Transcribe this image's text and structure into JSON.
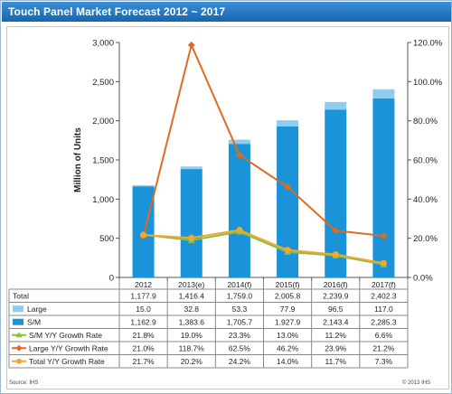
{
  "header": {
    "title": "Touch Panel Market Forecast 2012 ~ 2017"
  },
  "chart_data": {
    "type": "bar",
    "stacked": true,
    "categories": [
      "2012",
      "2013(e)",
      "2014(f)",
      "2015(f)",
      "2016(f)",
      "2017(f)"
    ],
    "ylabel": "Million of Units",
    "ylim": [
      0,
      3000
    ],
    "yticks": [
      "0",
      "500",
      "1,000",
      "1,500",
      "2,000",
      "2,500",
      "3,000"
    ],
    "y2lim": [
      0,
      120
    ],
    "y2ticks": [
      "0.0%",
      "20.0%",
      "40.0%",
      "60.0%",
      "80.0%",
      "100.0%",
      "120.0%"
    ],
    "bar_series": [
      {
        "name": "S/M",
        "values": [
          1162.9,
          1383.6,
          1705.7,
          1927.9,
          2143.4,
          2285.3
        ],
        "color": "#1a93d8"
      },
      {
        "name": "Large",
        "values": [
          15.0,
          32.8,
          53.3,
          77.9,
          96.5,
          117.0
        ],
        "color": "#8ccdf0"
      }
    ],
    "line_series": [
      {
        "name": "S/M Y/Y Growth Rate",
        "values": [
          21.8,
          19.0,
          23.3,
          13.0,
          11.2,
          6.6
        ],
        "color": "#8dbf3b",
        "marker": "triangle"
      },
      {
        "name": "Large Y/Y Growth Rate",
        "values": [
          21.0,
          118.7,
          62.5,
          46.2,
          23.9,
          21.2
        ],
        "color": "#e06a20",
        "marker": "diamond"
      },
      {
        "name": "Total Y/Y Growth Rate",
        "values": [
          21.7,
          20.2,
          24.2,
          14.0,
          11.7,
          7.3
        ],
        "color": "#f0a830",
        "marker": "circle"
      }
    ],
    "table": {
      "rows": [
        {
          "label": "Total",
          "key": "total",
          "values": [
            "1,177.9",
            "1,416.4",
            "1,759.0",
            "2,005.8",
            "2,239.9",
            "2,402.3"
          ]
        },
        {
          "label": "Large",
          "key": "large",
          "values": [
            "15.0",
            "32.8",
            "53.3",
            "77.9",
            "96.5",
            "117.0"
          ]
        },
        {
          "label": "S/M",
          "key": "sm",
          "values": [
            "1,162.9",
            "1,383.6",
            "1,705.7",
            "1,927.9",
            "2,143.4",
            "2,285.3"
          ]
        },
        {
          "label": "S/M Y/Y Growth Rate",
          "key": "sm_rate",
          "values": [
            "21.8%",
            "19.0%",
            "23.3%",
            "13.0%",
            "11.2%",
            "6.6%"
          ]
        },
        {
          "label": "Large Y/Y Growth Rate",
          "key": "large_rate",
          "values": [
            "21.0%",
            "118.7%",
            "62.5%",
            "46.2%",
            "23.9%",
            "21.2%"
          ]
        },
        {
          "label": "Total Y/Y Growth Rate",
          "key": "total_rate",
          "values": [
            "21.7%",
            "20.2%",
            "24.2%",
            "14.0%",
            "11.7%",
            "7.3%"
          ]
        }
      ]
    },
    "grid": false
  },
  "footer": {
    "source": "Source: IHS",
    "copyright": "© 2013 IHS"
  }
}
